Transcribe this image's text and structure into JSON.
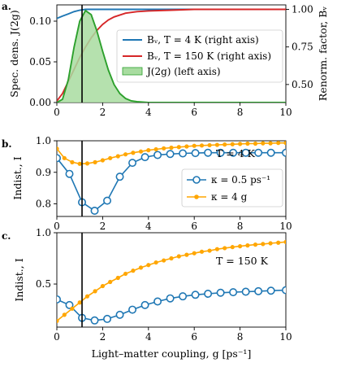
{
  "chart_data": [
    {
      "panel": "a.",
      "type": "line",
      "xlabel": "",
      "ylabel": "Spec. dens. J(2g)",
      "ylabel_right": "Renorm. factor, Bᵥ",
      "xlim": [
        0,
        10
      ],
      "ylim": [
        0,
        0.12
      ],
      "ylim_right": [
        0.38,
        1.03
      ],
      "xticks": [
        "0",
        "2",
        "4",
        "6",
        "8",
        "10"
      ],
      "yticks": [
        "0.00",
        "0.05",
        "0.10"
      ],
      "yticks_right": [
        "0.50",
        "0.75",
        "1.00"
      ],
      "vline_x": 1.1,
      "legend_position": "center-right",
      "legend": [
        "Bᵥ, T = 4 K (right axis)",
        "Bᵥ, T = 150 K (right axis)",
        "J(2g) (left axis)"
      ],
      "series": [
        {
          "name": "Bᵥ, T = 4 K (right axis)",
          "axis": "right",
          "color": "#1f77b4",
          "x": [
            0,
            0.25,
            0.5,
            0.75,
            1,
            1.25,
            1.5,
            2,
            2.5,
            3,
            4,
            5,
            6,
            7,
            8,
            9,
            10
          ],
          "y": [
            0.94,
            0.955,
            0.97,
            0.985,
            0.995,
            1.0,
            1.0,
            1.0,
            1.0,
            1.0,
            1.0,
            1.0,
            1.0,
            1.0,
            1.0,
            1.0,
            1.0
          ]
        },
        {
          "name": "Bᵥ, T = 150 K (right axis)",
          "axis": "right",
          "color": "#d62728",
          "x": [
            0,
            0.25,
            0.5,
            0.75,
            1,
            1.25,
            1.5,
            1.75,
            2,
            2.25,
            2.5,
            3,
            3.5,
            4,
            5,
            6,
            7,
            8,
            9,
            10
          ],
          "y": [
            0.39,
            0.44,
            0.52,
            0.6,
            0.68,
            0.75,
            0.81,
            0.86,
            0.9,
            0.93,
            0.95,
            0.975,
            0.985,
            0.99,
            0.995,
            1.0,
            1.0,
            1.0,
            1.0,
            1.0
          ]
        },
        {
          "name": "J(2g) (left axis)",
          "axis": "left",
          "color": "#2ca02c",
          "fill": "#a8dca0",
          "x": [
            0,
            0.25,
            0.5,
            0.75,
            1,
            1.25,
            1.5,
            1.75,
            2,
            2.25,
            2.5,
            2.75,
            3,
            3.25,
            3.5,
            4,
            5,
            6,
            7,
            8,
            9,
            10
          ],
          "y": [
            0,
            0.004,
            0.028,
            0.068,
            0.1,
            0.113,
            0.108,
            0.088,
            0.063,
            0.04,
            0.022,
            0.011,
            0.005,
            0.002,
            0.001,
            0,
            0,
            0,
            0,
            0,
            0,
            0
          ]
        }
      ]
    },
    {
      "panel": "b.",
      "type": "line",
      "xlabel": "",
      "ylabel": "Indist., I",
      "xlim": [
        0,
        10
      ],
      "ylim": [
        0.76,
        1.0
      ],
      "xticks": [
        "0",
        "2",
        "4",
        "6",
        "8",
        "10"
      ],
      "yticks": [
        "0.8",
        "0.9",
        "1.0"
      ],
      "vline_x": 1.1,
      "annotation": "T = 4 K",
      "legend_position": "right",
      "legend": [
        "κ = 0.5 ps⁻¹",
        "κ = 4 g"
      ],
      "series": [
        {
          "name": "κ = 0.5 ps⁻¹",
          "color": "#1f77b4",
          "marker": "open-circle",
          "x": [
            0,
            0.55,
            1.1,
            1.65,
            2.2,
            2.75,
            3.3,
            3.85,
            4.4,
            4.95,
            5.5,
            6.05,
            6.6,
            7.15,
            7.7,
            8.25,
            8.8,
            9.35,
            10
          ],
          "y": [
            0.945,
            0.895,
            0.805,
            0.778,
            0.81,
            0.886,
            0.93,
            0.948,
            0.955,
            0.958,
            0.96,
            0.961,
            0.962,
            0.962,
            0.962,
            0.962,
            0.962,
            0.962,
            0.962
          ]
        },
        {
          "name": "κ = 4 g",
          "color": "#ffa600",
          "marker": "filled-dot",
          "x": [
            0,
            0.33,
            0.67,
            1,
            1.33,
            1.67,
            2,
            2.33,
            2.67,
            3,
            3.33,
            3.67,
            4,
            4.33,
            4.67,
            5,
            5.33,
            5.67,
            6,
            6.33,
            6.67,
            7,
            7.33,
            7.67,
            8,
            8.33,
            8.67,
            9,
            9.33,
            9.67,
            10
          ],
          "y": [
            0.975,
            0.945,
            0.932,
            0.927,
            0.928,
            0.932,
            0.938,
            0.945,
            0.951,
            0.957,
            0.962,
            0.966,
            0.97,
            0.973,
            0.976,
            0.978,
            0.98,
            0.982,
            0.984,
            0.985,
            0.986,
            0.987,
            0.988,
            0.989,
            0.99,
            0.991,
            0.991,
            0.992,
            0.992,
            0.993,
            0.993
          ]
        }
      ]
    },
    {
      "panel": "c.",
      "type": "line",
      "xlabel": "Light–matter coupling, g [ps⁻¹]",
      "ylabel": "Indist., I",
      "xlim": [
        0,
        10
      ],
      "ylim": [
        0.08,
        1.0
      ],
      "xticks": [
        "0",
        "2",
        "4",
        "6",
        "8",
        "10"
      ],
      "yticks": [
        "0.5",
        "1.0"
      ],
      "vline_x": 1.1,
      "annotation": "T = 150 K",
      "series": [
        {
          "name": "κ = 0.5 ps⁻¹",
          "color": "#1f77b4",
          "marker": "open-circle",
          "x": [
            0,
            0.55,
            1.1,
            1.65,
            2.2,
            2.75,
            3.3,
            3.85,
            4.4,
            4.95,
            5.5,
            6.05,
            6.6,
            7.15,
            7.7,
            8.25,
            8.8,
            9.35,
            10
          ],
          "y": [
            0.35,
            0.295,
            0.17,
            0.145,
            0.16,
            0.2,
            0.25,
            0.295,
            0.33,
            0.36,
            0.38,
            0.395,
            0.405,
            0.415,
            0.42,
            0.425,
            0.43,
            0.435,
            0.44
          ]
        },
        {
          "name": "κ = 4 g",
          "color": "#ffa600",
          "marker": "filled-dot",
          "x": [
            0,
            0.33,
            0.67,
            1,
            1.33,
            1.67,
            2,
            2.33,
            2.67,
            3,
            3.33,
            3.67,
            4,
            4.33,
            4.67,
            5,
            5.33,
            5.67,
            6,
            6.33,
            6.67,
            7,
            7.33,
            7.67,
            8,
            8.33,
            8.67,
            9,
            9.33,
            9.67,
            10
          ],
          "y": [
            0.14,
            0.2,
            0.26,
            0.32,
            0.38,
            0.43,
            0.48,
            0.52,
            0.56,
            0.6,
            0.63,
            0.66,
            0.685,
            0.71,
            0.73,
            0.75,
            0.77,
            0.785,
            0.8,
            0.815,
            0.825,
            0.84,
            0.85,
            0.86,
            0.868,
            0.876,
            0.884,
            0.89,
            0.897,
            0.903,
            0.91
          ]
        }
      ]
    }
  ]
}
